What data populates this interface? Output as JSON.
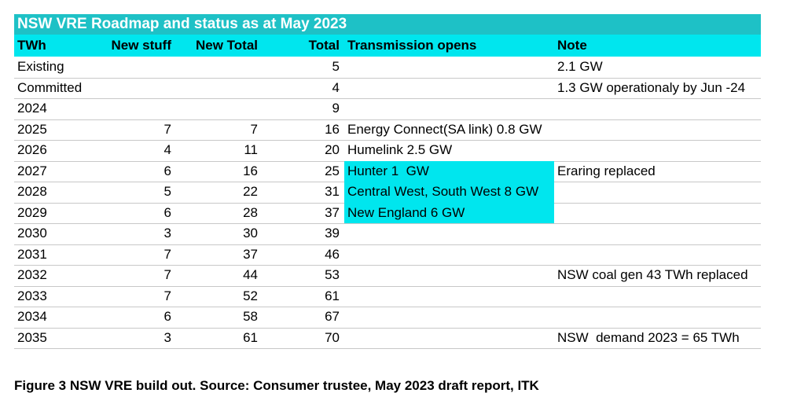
{
  "title": "NSW VRE Roadmap and status as at May 2023",
  "table": {
    "columns": [
      "TWh",
      "New stuff",
      "New Total",
      "Total",
      "Transmission opens",
      "Note"
    ],
    "rows": [
      {
        "year": "Existing",
        "total": 5,
        "note": "2.1 GW"
      },
      {
        "year": "Committed",
        "total": 4,
        "note": "1.3 GW operationaly by Jun -24"
      },
      {
        "year": "2024",
        "total": 9
      },
      {
        "year": "2025",
        "new_stuff": 7,
        "new_total": 7,
        "total": 16,
        "transmission": "Energy Connect(SA link) 0.8 GW"
      },
      {
        "year": "2026",
        "new_stuff": 4,
        "new_total": 11,
        "total": 20,
        "transmission": "Humelink 2.5 GW"
      },
      {
        "year": "2027",
        "new_stuff": 6,
        "new_total": 16,
        "total": 25,
        "transmission": "Hunter 1  GW",
        "transmission_highlight": true,
        "note": "Eraring replaced"
      },
      {
        "year": "2028",
        "new_stuff": 5,
        "new_total": 22,
        "total": 31,
        "transmission": "Central West, South West 8 GW",
        "transmission_highlight": true
      },
      {
        "year": "2029",
        "new_stuff": 6,
        "new_total": 28,
        "total": 37,
        "transmission": "New England 6 GW",
        "transmission_highlight": true
      },
      {
        "year": "2030",
        "new_stuff": 3,
        "new_total": 30,
        "total": 39
      },
      {
        "year": "2031",
        "new_stuff": 7,
        "new_total": 37,
        "total": 46
      },
      {
        "year": "2032",
        "new_stuff": 7,
        "new_total": 44,
        "total": 53,
        "note": "NSW coal gen 43 TWh replaced"
      },
      {
        "year": "2033",
        "new_stuff": 7,
        "new_total": 52,
        "total": 61
      },
      {
        "year": "2034",
        "new_stuff": 6,
        "new_total": 58,
        "total": 67
      },
      {
        "year": "2035",
        "new_stuff": 3,
        "new_total": 61,
        "total": 70,
        "note": "NSW  demand 2023 = 65 TWh"
      }
    ]
  },
  "caption": "Figure 3 NSW VRE build out. Source: Consumer trustee, May 2023 draft report, ITK"
}
